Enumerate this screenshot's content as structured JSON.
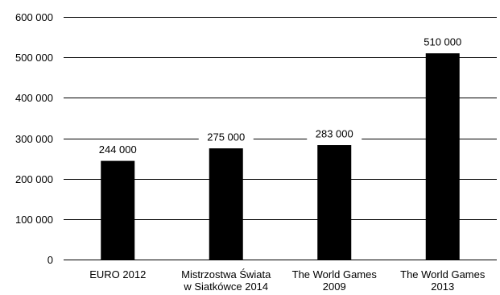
{
  "chart_data": {
    "type": "bar",
    "categories": [
      [
        "EURO 2012"
      ],
      [
        "Mistrzostwa Świata",
        "w Siatkówce 2014"
      ],
      [
        "The World Games",
        "2009"
      ],
      [
        "The World Games",
        "2013"
      ]
    ],
    "values": [
      244000,
      275000,
      283000,
      510000
    ],
    "value_labels": [
      "244 000",
      "275 000",
      "283 000",
      "510 000"
    ],
    "y_ticks": [
      0,
      100000,
      200000,
      300000,
      400000,
      500000,
      600000
    ],
    "y_tick_labels": [
      "0",
      "100 000",
      "200 000",
      "300 000",
      "400 000",
      "500 000",
      "600 000"
    ],
    "ylim": [
      0,
      600000
    ],
    "title": "",
    "xlabel": "",
    "ylabel": "",
    "grid": true,
    "bar_color": "#000000",
    "grid_color": "#000000"
  }
}
